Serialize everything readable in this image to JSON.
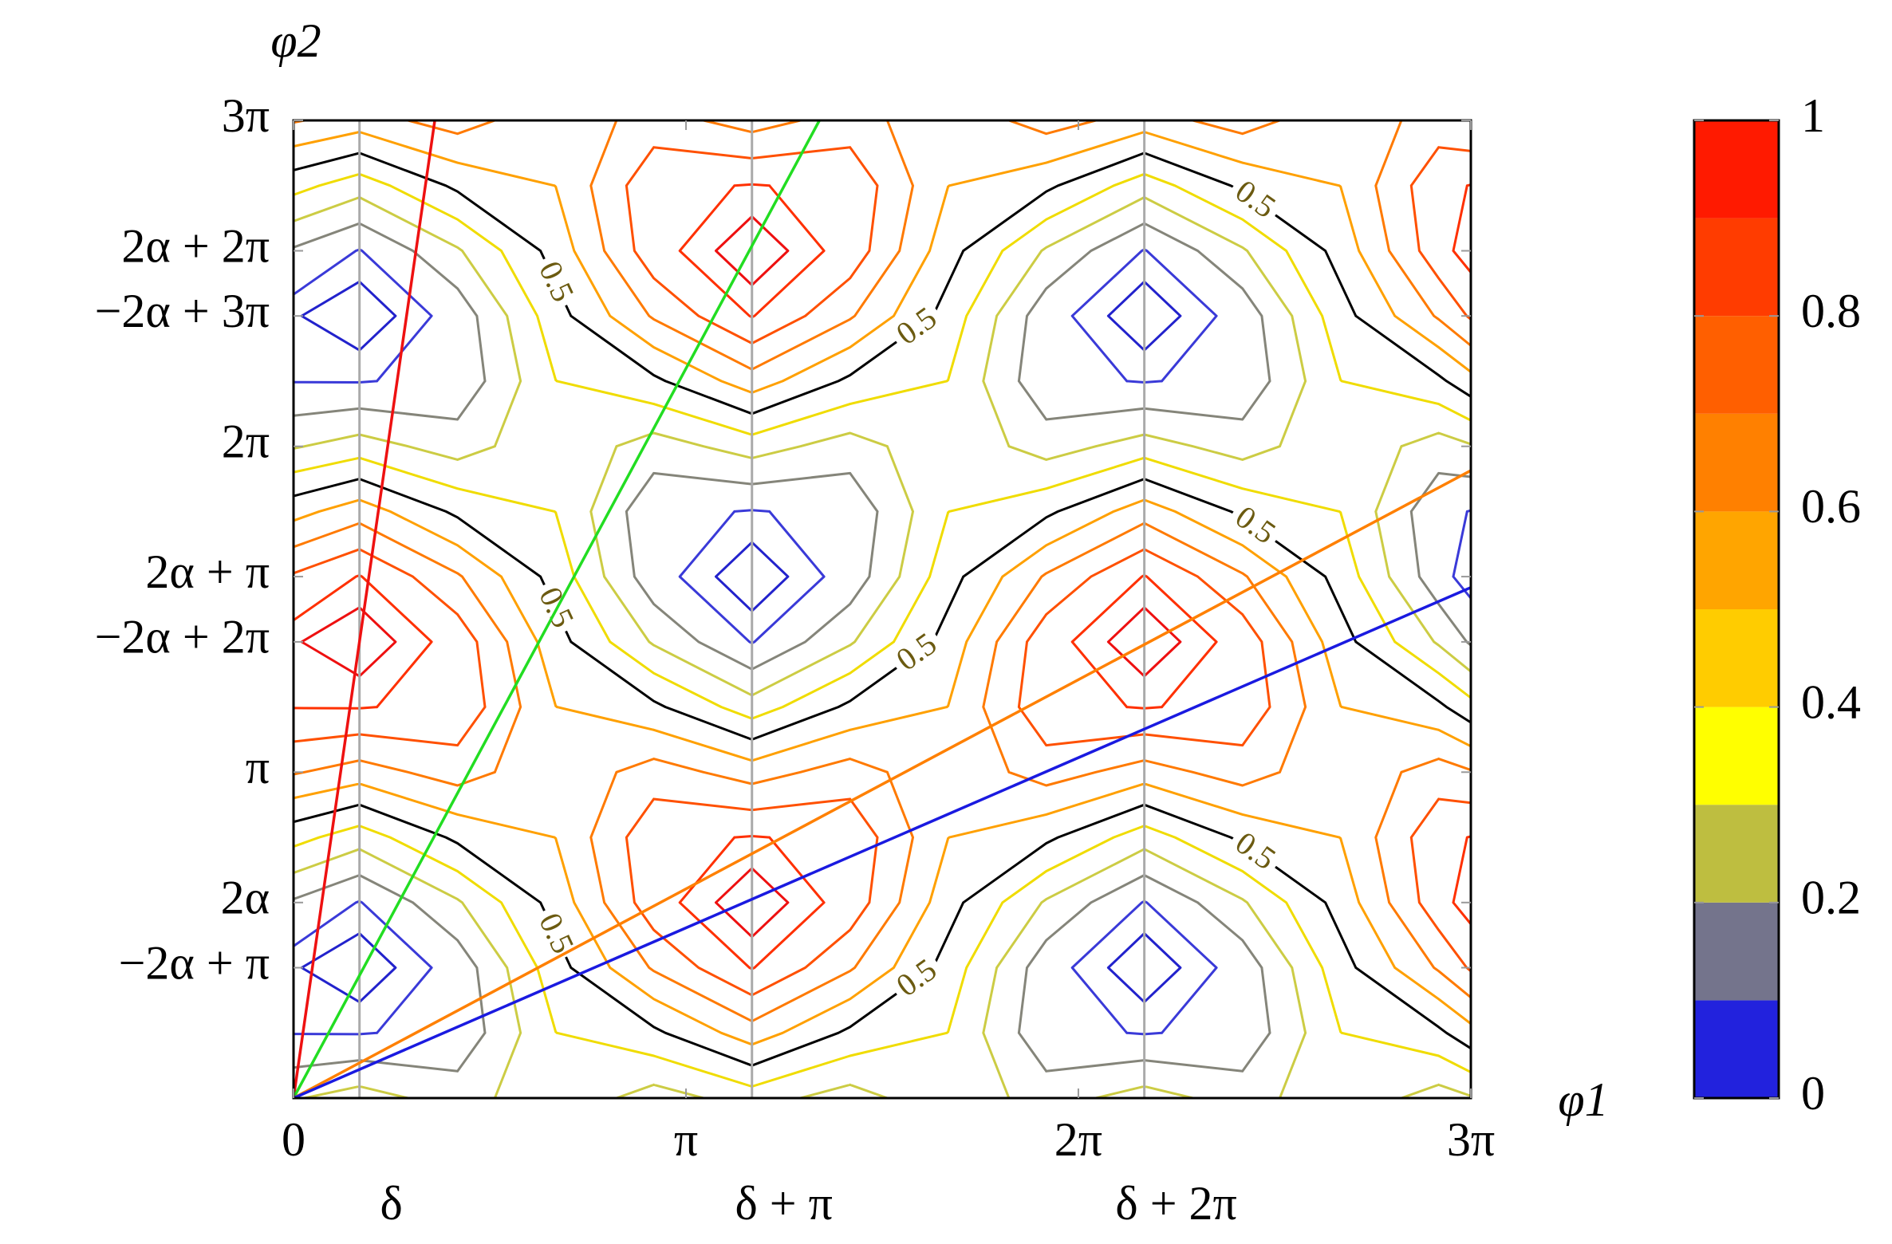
{
  "chart_data": {
    "type": "contour",
    "xlabel": "φ1",
    "ylabel": "φ2",
    "xlim": [
      0,
      9.425
    ],
    "ylim": [
      0,
      9.425
    ],
    "xticks": [
      0,
      {
        "value": 3.142,
        "label": "π"
      },
      {
        "value": 6.283,
        "label": "2π"
      },
      {
        "value": 9.425,
        "label": "3π"
      }
    ],
    "xticks_secondary": [
      {
        "value": 0.528,
        "label": "δ"
      },
      {
        "value": 3.67,
        "label": "δ + π"
      },
      {
        "value": 6.811,
        "label": "δ + 2π"
      }
    ],
    "yticks": [
      {
        "value": 1.257,
        "label": "−2α + π"
      },
      {
        "value": 1.885,
        "label": "2α"
      },
      {
        "value": 3.142,
        "label": "π"
      },
      {
        "value": 4.398,
        "label": "−2α + 2π"
      },
      {
        "value": 5.027,
        "label": "2α + π"
      },
      {
        "value": 6.283,
        "label": "2π"
      },
      {
        "value": 7.54,
        "label": "−2α + 3π"
      },
      {
        "value": 8.168,
        "label": "2α + 2π"
      },
      {
        "value": 9.425,
        "label": "3π"
      }
    ],
    "grid_color": "#aaaaaa",
    "x": [
      0,
      0.528,
      1.313,
      2.099,
      2.884,
      3.67,
      4.455,
      5.24,
      6.026,
      6.811,
      7.597,
      8.382,
      9.167,
      9.425
    ],
    "y": [
      0,
      0.628,
      1.257,
      1.885,
      2.513,
      3.142,
      3.77,
      4.398,
      5.027,
      5.655,
      6.283,
      6.912,
      7.54,
      8.168,
      8.796,
      9.425
    ],
    "z": [
      [
        0.291,
        0.097,
        0.057,
        0.187,
        0.435,
        0.709,
        0.903,
        0.943,
        0.813,
        0.565,
        0.291,
        0.097,
        0.057,
        0.187,
        0.435,
        0.709
      ],
      [
        0.345,
        0.095,
        0,
        0.095,
        0.345,
        0.655,
        0.905,
        1,
        0.905,
        0.655,
        0.345,
        0.095,
        0,
        0.095,
        0.345,
        0.655
      ],
      [
        0.254,
        0.123,
        0.136,
        0.288,
        0.521,
        0.746,
        0.877,
        0.864,
        0.712,
        0.479,
        0.254,
        0.123,
        0.136,
        0.288,
        0.521,
        0.746
      ],
      [
        0.375,
        0.399,
        0.461,
        0.539,
        0.601,
        0.625,
        0.601,
        0.539,
        0.461,
        0.399,
        0.375,
        0.399,
        0.461,
        0.539,
        0.601,
        0.625
      ],
      [
        0.254,
        0.479,
        0.712,
        0.864,
        0.877,
        0.746,
        0.521,
        0.288,
        0.136,
        0.123,
        0.254,
        0.479,
        0.712,
        0.864,
        0.877,
        0.746
      ],
      [
        0.345,
        0.655,
        0.905,
        1,
        0.905,
        0.655,
        0.345,
        0.095,
        0,
        0.095,
        0.345,
        0.655,
        0.905,
        1,
        0.905,
        0.655
      ],
      [
        0.254,
        0.479,
        0.712,
        0.864,
        0.877,
        0.746,
        0.521,
        0.288,
        0.136,
        0.123,
        0.254,
        0.479,
        0.712,
        0.864,
        0.877,
        0.746
      ],
      [
        0.375,
        0.399,
        0.461,
        0.539,
        0.601,
        0.625,
        0.601,
        0.539,
        0.461,
        0.399,
        0.375,
        0.399,
        0.461,
        0.539,
        0.601,
        0.625
      ],
      [
        0.254,
        0.123,
        0.136,
        0.288,
        0.521,
        0.746,
        0.877,
        0.864,
        0.712,
        0.479,
        0.254,
        0.123,
        0.136,
        0.288,
        0.521,
        0.746
      ],
      [
        0.345,
        0.095,
        0,
        0.095,
        0.345,
        0.655,
        0.905,
        1,
        0.905,
        0.655,
        0.345,
        0.095,
        0,
        0.095,
        0.345,
        0.655
      ],
      [
        0.254,
        0.123,
        0.136,
        0.288,
        0.521,
        0.746,
        0.877,
        0.864,
        0.712,
        0.479,
        0.254,
        0.123,
        0.136,
        0.288,
        0.521,
        0.746
      ],
      [
        0.375,
        0.399,
        0.461,
        0.539,
        0.601,
        0.625,
        0.601,
        0.539,
        0.461,
        0.399,
        0.375,
        0.399,
        0.461,
        0.539,
        0.601,
        0.625
      ],
      [
        0.254,
        0.479,
        0.712,
        0.864,
        0.877,
        0.746,
        0.521,
        0.288,
        0.136,
        0.123,
        0.254,
        0.479,
        0.712,
        0.864,
        0.877,
        0.746
      ],
      [
        0.291,
        0.565,
        0.813,
        0.943,
        0.903,
        0.709,
        0.435,
        0.187,
        0.057,
        0.097,
        0.291,
        0.565,
        0.813,
        0.943,
        0.903,
        0.709
      ]
    ],
    "contours": [
      {
        "level": 0.05,
        "color": "#2222cc"
      },
      {
        "level": 0.1,
        "color": "#3a3ad8"
      },
      {
        "level": 0.2,
        "color": "#85857a"
      },
      {
        "level": 0.3,
        "color": "#cccc44"
      },
      {
        "level": 0.4,
        "color": "#f0dc00"
      },
      {
        "level": 0.5,
        "color": "#000000",
        "labeled": true
      },
      {
        "level": 0.6,
        "color": "#ffa000"
      },
      {
        "level": 0.7,
        "color": "#ff7a00"
      },
      {
        "level": 0.8,
        "color": "#ff5000"
      },
      {
        "level": 0.9,
        "color": "#ff3000"
      },
      {
        "level": 0.95,
        "color": "#ee1010"
      }
    ],
    "lines": [
      {
        "color": "#ee1111",
        "x": [
          0,
          1.131
        ],
        "y": [
          0,
          9.425
        ]
      },
      {
        "color": "#22dd22",
        "x": [
          0,
          4.21
        ],
        "y": [
          0,
          9.425
        ]
      },
      {
        "color": "#ff8000",
        "x": [
          0,
          9.425
        ],
        "y": [
          0,
          6.05
        ]
      },
      {
        "color": "#1a1ae0",
        "x": [
          0,
          9.425
        ],
        "y": [
          0,
          4.922
        ]
      }
    ],
    "colorbar": {
      "lim": [
        0,
        1
      ],
      "ticks": [
        0,
        0.2,
        0.4,
        0.6,
        0.8,
        1
      ],
      "colors": [
        "#2222dd",
        "#74748c",
        "#bebe40",
        "#ffff00",
        "#ffcc00",
        "#ffa500",
        "#ff8000",
        "#ff5f00",
        "#ff3c00",
        "#ff1a00"
      ]
    }
  }
}
